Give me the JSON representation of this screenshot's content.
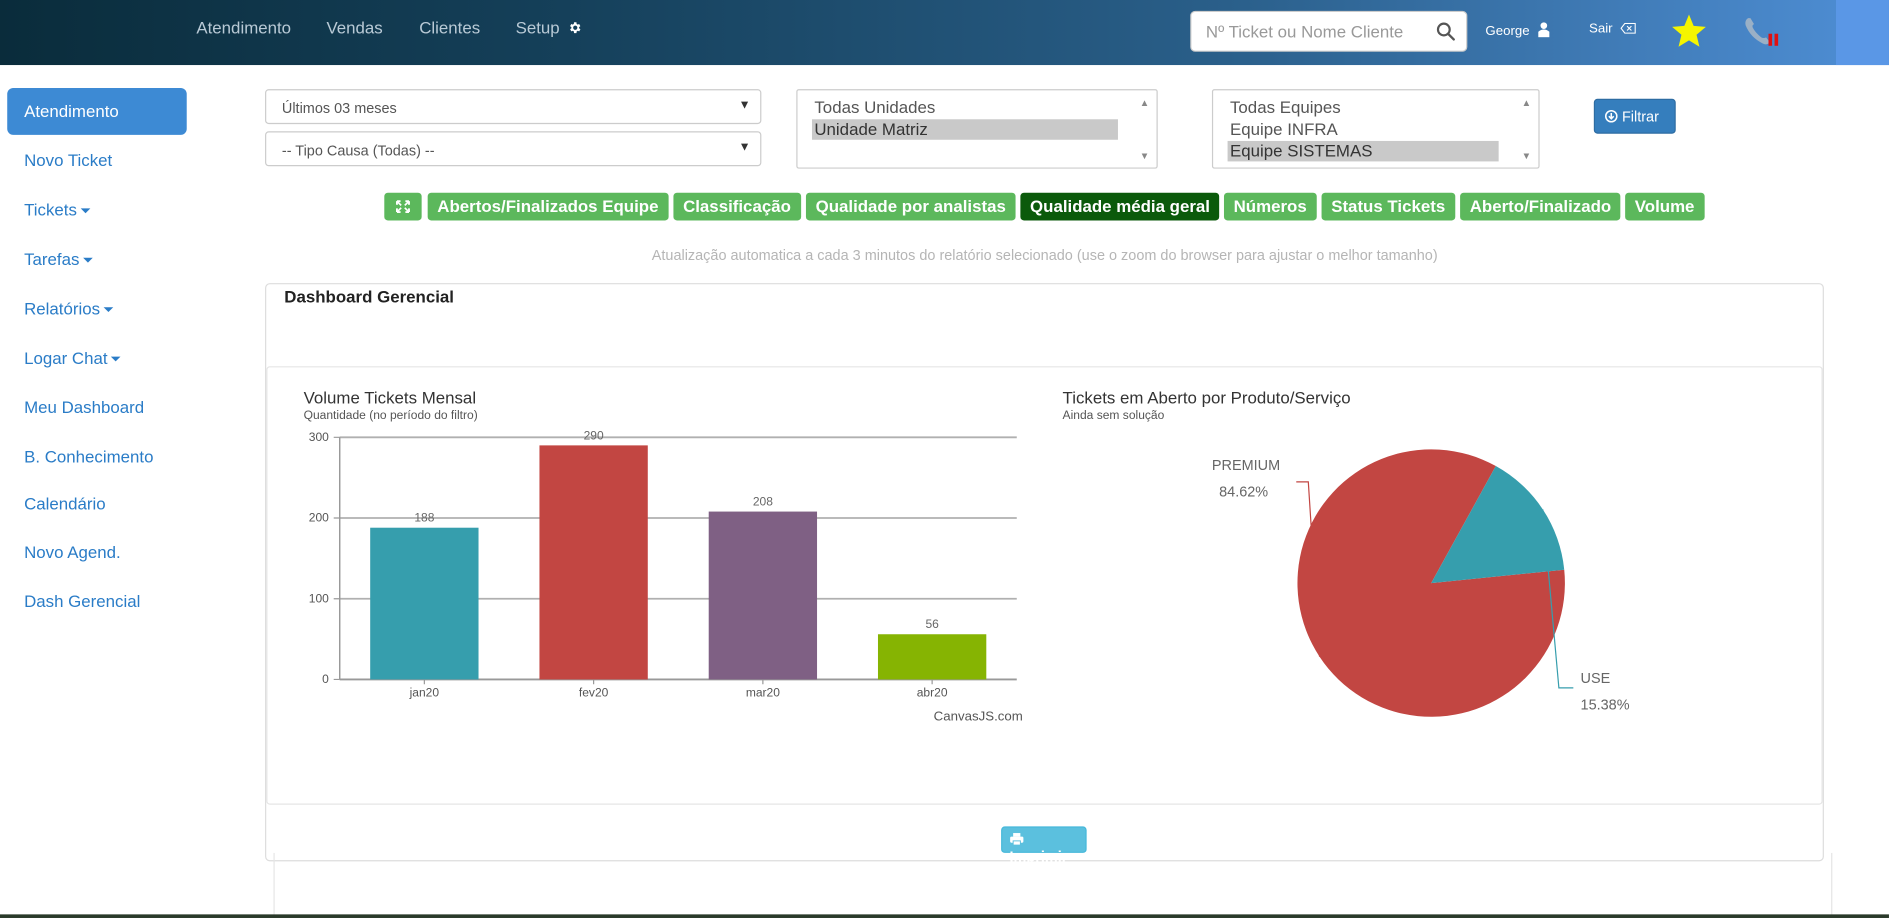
{
  "nav": {
    "items": [
      "Atendimento",
      "Vendas",
      "Clientes",
      "Setup"
    ],
    "search_placeholder": "Nº Ticket ou Nome Cliente",
    "user": "George",
    "logout": "Sair"
  },
  "sidebar": {
    "active": "Atendimento",
    "items": [
      {
        "label": "Novo Ticket",
        "dropdown": false
      },
      {
        "label": "Tickets",
        "dropdown": true
      },
      {
        "label": "Tarefas",
        "dropdown": true
      },
      {
        "label": "Relatórios",
        "dropdown": true
      },
      {
        "label": "Logar Chat",
        "dropdown": true
      },
      {
        "label": "Meu Dashboard",
        "dropdown": false
      },
      {
        "label": "B. Conhecimento",
        "dropdown": false
      },
      {
        "label": "Calendário",
        "dropdown": false
      },
      {
        "label": "Novo Agend.",
        "dropdown": false
      },
      {
        "label": "Dash Gerencial",
        "dropdown": false
      }
    ]
  },
  "filters": {
    "period": "Últimos 03 meses",
    "cause_type": "-- Tipo Causa (Todas) --",
    "units": [
      {
        "label": "Todas Unidades",
        "selected": false
      },
      {
        "label": "Unidade Matriz",
        "selected": true
      }
    ],
    "teams": [
      {
        "label": "Todas Equipes",
        "selected": false
      },
      {
        "label": "Equipe INFRA",
        "selected": false
      },
      {
        "label": "Equipe SISTEMAS",
        "selected": true
      }
    ],
    "filter_button": "Filtrar"
  },
  "tabs": [
    {
      "label": "Abertos/Finalizados Equipe",
      "active": false
    },
    {
      "label": "Classificação",
      "active": false
    },
    {
      "label": "Qualidade por analistas",
      "active": false
    },
    {
      "label": "Qualidade média geral",
      "active": true
    },
    {
      "label": "Números",
      "active": false
    },
    {
      "label": "Status Tickets",
      "active": false
    },
    {
      "label": "Aberto/Finalizado",
      "active": false
    },
    {
      "label": "Volume",
      "active": false
    }
  ],
  "auto_update_note": "Atualização automatica a cada 3 minutos do relatório selecionado (use o zoom do browser para ajustar o melhor tamanho)",
  "panel_title": "Dashboard Gerencial",
  "print_button": "Imprimir",
  "credit": "CanvasJS.com",
  "colors": {
    "accent": "#3d8ad4",
    "tab": "#5cb85c",
    "tab_active": "#0b5a0b",
    "print": "#5bc0de"
  },
  "chart_data": [
    {
      "type": "bar",
      "title": "Volume Tickets Mensal",
      "subtitle": "Quantidade (no período do filtro)",
      "categories": [
        "jan20",
        "fev20",
        "mar20",
        "abr20"
      ],
      "values": [
        188,
        290,
        208,
        56
      ],
      "data_labels": [
        "188",
        "290",
        "208",
        "56"
      ],
      "colors": [
        "#369ead",
        "#c24642",
        "#7f6084",
        "#86b402"
      ],
      "ylim": [
        0,
        300
      ],
      "yticks": [
        0,
        100,
        200,
        300
      ],
      "grid": true
    },
    {
      "type": "pie",
      "title": "Tickets em Aberto por Produto/Serviço",
      "subtitle": "Ainda sem solução",
      "slices": [
        {
          "label": "PREMIUM",
          "value": 84.62,
          "display": "84.62%",
          "color": "#c24642"
        },
        {
          "label": "USE",
          "value": 15.38,
          "display": "15.38%",
          "color": "#369ead"
        }
      ]
    }
  ]
}
